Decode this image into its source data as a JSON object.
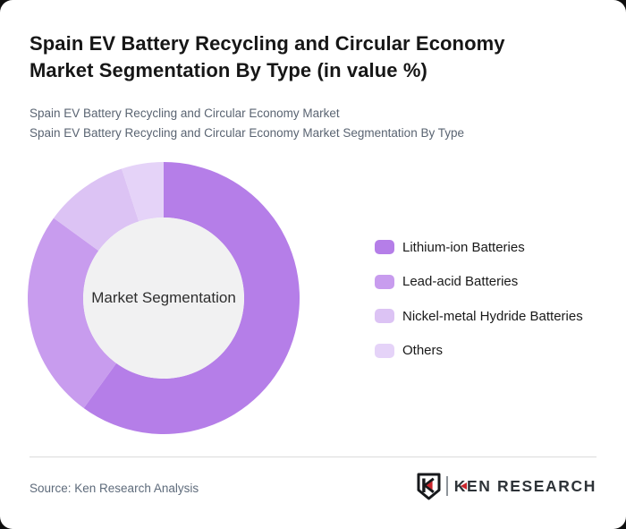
{
  "page": {
    "background_color": "#0f0f0f",
    "card_color": "#ffffff"
  },
  "header": {
    "title_line1": "Spain EV Battery Recycling and Circular Economy",
    "title_line2": "Market Segmentation By Type (in value %)",
    "subtitle_line1": "Spain EV Battery Recycling and Circular Economy Market",
    "subtitle_line2": "Spain EV Battery Recycling and Circular Economy Market Segmentation By Type"
  },
  "chart_data": {
    "type": "pie",
    "subtype": "donut",
    "title": "Spain EV Battery Recycling and Circular Economy Market Segmentation By Type (in value %)",
    "center_label": "Market Segmentation",
    "categories": [
      "Lithium-ion Batteries",
      "Lead-acid Batteries",
      "Nickel-metal Hydride Batteries",
      "Others"
    ],
    "values": [
      60,
      25,
      10,
      5
    ],
    "unit": "value %",
    "colors": [
      "#b57ee8",
      "#c89cee",
      "#dcc3f4",
      "#e5d3f8"
    ],
    "start_angle_deg": 0,
    "direction": "clockwise",
    "inner_radius_ratio": 0.592,
    "center_fill": "#f1f1f2",
    "legend_position": "right",
    "data_labels_shown": false
  },
  "footer": {
    "source": "Source: Ken Research Analysis",
    "logo_text": "KEN RESEARCH",
    "logo_accent_color": "#c9252c",
    "logo_text_color": "#2e3338"
  }
}
